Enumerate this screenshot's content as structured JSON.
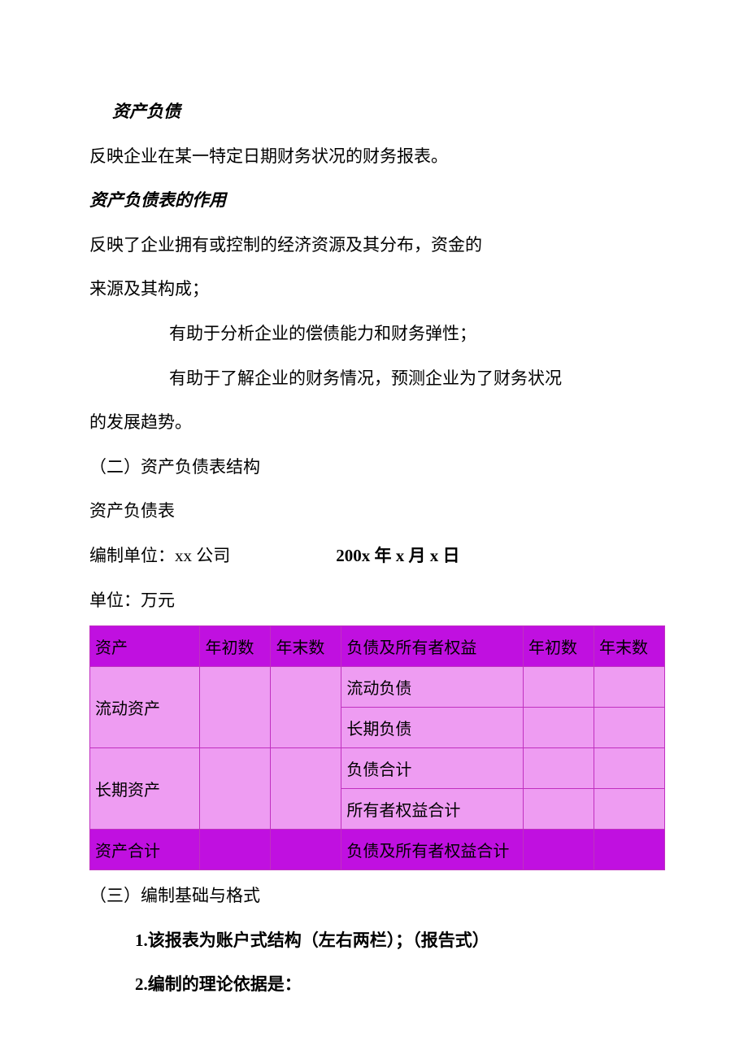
{
  "title_italic": "资产负债",
  "p1": "反映企业在某一特定日期财务状况的财务报表。",
  "subtitle_italic": "资产负债表的作用",
  "p2a": "反映了企业拥有或控制的经济资源及其分布，资金的",
  "p2b": "来源及其构成；",
  "p3": "有助于分析企业的偿债能力和财务弹性；",
  "p4a": "有助于了解企业的财务情况，预测企业为了财务状况",
  "p4b": "的发展趋势。",
  "section2": "（二）资产负债表结构",
  "table_title": "资产负债表",
  "compiler_label": "编制单位：xx 公司",
  "date_label": "200x 年 x 月 x 日",
  "unit_label": "单位：万元",
  "table": {
    "headers": [
      "资产",
      "年初数",
      "年末数",
      "负债及所有者权益",
      "年初数",
      "年末数"
    ],
    "rows": [
      {
        "left": "流动资产",
        "rights": [
          "流动负债",
          "长期负债"
        ]
      },
      {
        "left": "长期资产",
        "rights": [
          "负债合计",
          "所有者权益合计"
        ]
      },
      {
        "left": "资产合计",
        "rights": [
          "负债及所有者权益合计"
        ]
      }
    ],
    "header_bg": "#c010e0",
    "light_bg": "#ee9cf2",
    "border_color": "#c030c0"
  },
  "section3": "（三）编制基础与格式",
  "item1": "1.该报表为账户式结构（左右两栏）；（报告式）",
  "item2": "2.编制的理论依据是："
}
